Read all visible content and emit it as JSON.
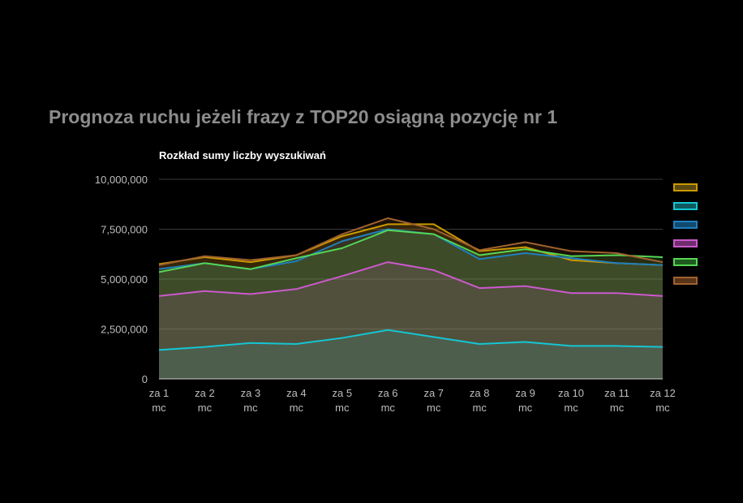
{
  "page": {
    "title": "Prognoza ruchu jeżeli frazy z TOP20 osiągną pozycję nr 1"
  },
  "chart_data": {
    "type": "area",
    "subtitle": "Rozkład sumy liczby wyszukiwań",
    "categories": [
      [
        "za 1",
        "mc"
      ],
      [
        "za 2",
        "mc"
      ],
      [
        "za 3",
        "mc"
      ],
      [
        "za 4",
        "mc"
      ],
      [
        "za 5",
        "mc"
      ],
      [
        "za 6",
        "mc"
      ],
      [
        "za 7",
        "mc"
      ],
      [
        "za 8",
        "mc"
      ],
      [
        "za 9",
        "mc"
      ],
      [
        "za 10",
        "mc"
      ],
      [
        "za 11",
        "mc"
      ],
      [
        "za 12",
        "mc"
      ]
    ],
    "ylim": [
      0,
      10000000
    ],
    "yticks": [
      0,
      2500000,
      5000000,
      7500000,
      10000000
    ],
    "ytick_labels": [
      "0",
      "2,500,000",
      "5,000,000",
      "7,500,000",
      "10,000,000"
    ],
    "grid": true,
    "stacked": false,
    "legend_position": "right",
    "series": [
      {
        "color": "#cc9900",
        "fill": "#5a4a10",
        "values": [
          5750000,
          6100000,
          5850000,
          6200000,
          7150000,
          7750000,
          7750000,
          6400000,
          6600000,
          5950000,
          5800000,
          5700000
        ]
      },
      {
        "color": "#14c6d4",
        "fill": "#0e5a60",
        "values": [
          1450000,
          1600000,
          1800000,
          1750000,
          2050000,
          2450000,
          2100000,
          1750000,
          1850000,
          1650000,
          1650000,
          1600000
        ]
      },
      {
        "color": "#1f7fbf",
        "fill": "#104a6e",
        "values": [
          5500000,
          5800000,
          5500000,
          5900000,
          6900000,
          7500000,
          7250000,
          6000000,
          6300000,
          6050000,
          5800000,
          5700000
        ]
      },
      {
        "color": "#cc59cc",
        "fill": "#6e2e6e",
        "values": [
          4150000,
          4400000,
          4250000,
          4500000,
          5150000,
          5850000,
          5450000,
          4550000,
          4650000,
          4300000,
          4300000,
          4150000
        ]
      },
      {
        "color": "#55d655",
        "fill": "#1f5a1f",
        "values": [
          5350000,
          5800000,
          5500000,
          6050000,
          6550000,
          7450000,
          7250000,
          6200000,
          6500000,
          6150000,
          6200000,
          6100000
        ]
      },
      {
        "color": "#a0622e",
        "fill": "#5a3418",
        "values": [
          5700000,
          6150000,
          5950000,
          6200000,
          7250000,
          8050000,
          7500000,
          6450000,
          6850000,
          6400000,
          6300000,
          5850000
        ]
      }
    ]
  }
}
